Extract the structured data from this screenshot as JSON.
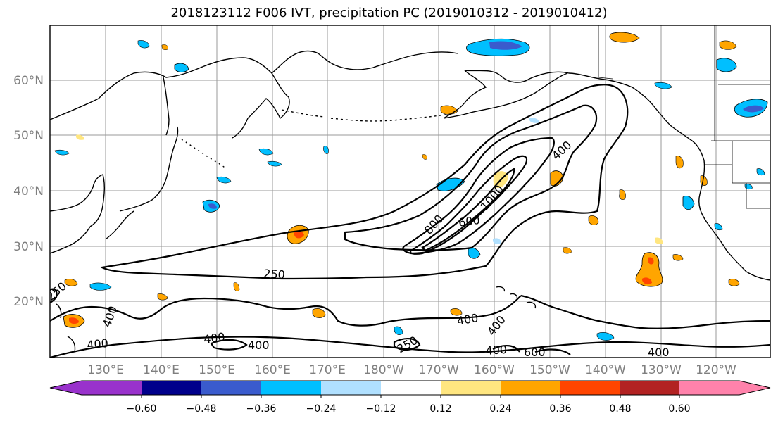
{
  "title": "2018123112 F006 IVT, precipitation PC (2019010312 - 2019010412)",
  "map": {
    "lat_labels": [
      "60°N",
      "50°N",
      "40°N",
      "30°N",
      "20°N"
    ],
    "lon_labels": [
      "130°E",
      "140°E",
      "150°E",
      "160°E",
      "170°E",
      "180°W",
      "170°W",
      "160°W",
      "150°W",
      "140°W",
      "130°W",
      "120°W"
    ],
    "contour_labels": [
      "400",
      "250",
      "800",
      "1000",
      "600",
      "400",
      "400",
      "400",
      "400",
      "400",
      "250",
      "400",
      "600",
      "400",
      "250",
      "400"
    ]
  },
  "colorbar": {
    "colors": [
      "#9932cc",
      "#00008b",
      "#3a5bcd",
      "#00bfff",
      "#b0e0ff",
      "#ffffff",
      "#ffe680",
      "#ffa500",
      "#ff4500",
      "#b22222",
      "#ff82ab"
    ],
    "tick_labels": [
      "−0.60",
      "−0.48",
      "−0.36",
      "−0.24",
      "−0.12",
      "0.12",
      "0.24",
      "0.36",
      "0.48",
      "0.60"
    ]
  }
}
